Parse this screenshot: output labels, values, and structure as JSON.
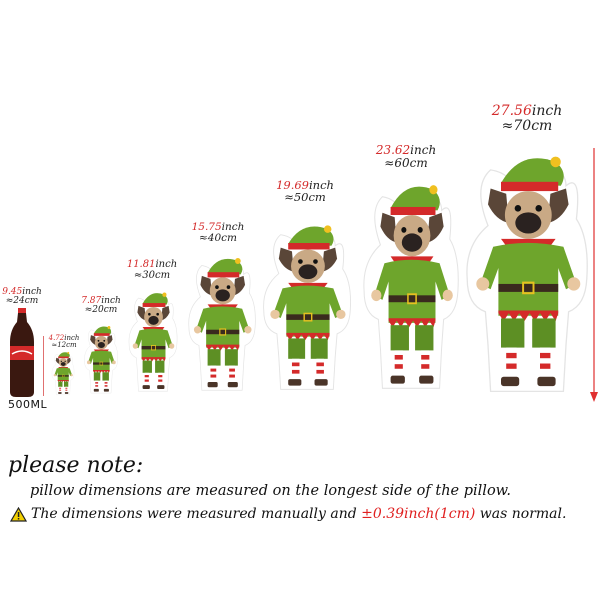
{
  "bottle": {
    "inch": "9.45",
    "unit": "inch",
    "cm": "≈24cm",
    "label": "500ML"
  },
  "pillows": [
    {
      "inch": "4.72",
      "unit": "inch",
      "cm": "≈12cm"
    },
    {
      "inch": "7.87",
      "unit": "inch",
      "cm": "≈20cm"
    },
    {
      "inch": "11.81",
      "unit": "inch",
      "cm": "≈30cm"
    },
    {
      "inch": "15.75",
      "unit": "inch",
      "cm": "≈40cm"
    },
    {
      "inch": "19.69",
      "unit": "inch",
      "cm": "≈50cm"
    },
    {
      "inch": "23.62",
      "unit": "inch",
      "cm": "≈60cm"
    },
    {
      "inch": "27.56",
      "unit": "inch",
      "cm": "≈70cm"
    }
  ],
  "note": {
    "title": "please note:",
    "line1": "pillow dimensions are measured on the longest side of the pillow.",
    "line2_pre": "The dimensions were measured manually and ",
    "line2_tol": "±0.39inch(1cm)",
    "line2_post": " was normal.",
    "icon": "warning-icon"
  },
  "colors": {
    "accent_red": "#d42a2a",
    "elf_green": "#6ea52c",
    "arrow": "#e03030"
  }
}
